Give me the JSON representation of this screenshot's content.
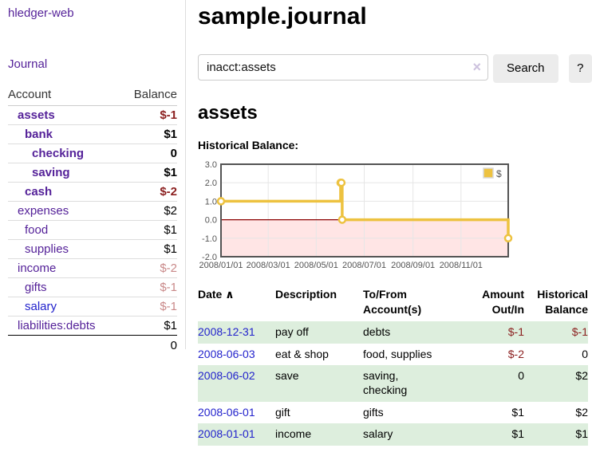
{
  "app": {
    "brand": "hledger-web",
    "nav_journal": "Journal"
  },
  "sidebar": {
    "accounts_header": {
      "account": "Account",
      "balance": "Balance"
    },
    "rows": [
      {
        "name": "assets",
        "depth": 1,
        "balance": "$-1",
        "bold": true,
        "neg": "strong"
      },
      {
        "name": "bank",
        "depth": 2,
        "balance": "$1",
        "bold": true
      },
      {
        "name": "checking",
        "depth": 3,
        "balance": "0",
        "bold": true
      },
      {
        "name": "saving",
        "depth": 3,
        "balance": "$1",
        "bold": true
      },
      {
        "name": "cash",
        "depth": 2,
        "balance": "$-2",
        "bold": true,
        "neg": "strong"
      },
      {
        "name": "expenses",
        "depth": 1,
        "balance": "$2"
      },
      {
        "name": "food",
        "depth": 2,
        "balance": "$1"
      },
      {
        "name": "supplies",
        "depth": 2,
        "balance": "$1"
      },
      {
        "name": "income",
        "depth": 1,
        "balance": "$-2",
        "neg": "faded"
      },
      {
        "name": "gifts",
        "depth": 2,
        "balance": "$-1",
        "neg": "faded"
      },
      {
        "name": "salary",
        "depth": 2,
        "balance": "$-1",
        "neg": "faded",
        "link": "blue"
      },
      {
        "name": "liabilities:debts",
        "depth": 1,
        "balance": "$1"
      }
    ],
    "total": "0"
  },
  "header": {
    "title": "sample.journal"
  },
  "search": {
    "value": "inacct:assets",
    "clear_icon": "×",
    "button_label": "Search",
    "help_label": "?"
  },
  "account_page": {
    "title": "assets",
    "chart_label": "Historical Balance:"
  },
  "chart_data": {
    "type": "line",
    "step": true,
    "title": "Historical Balance:",
    "legend": {
      "label": "$",
      "position": "top-right"
    },
    "ylim": [
      -2,
      3
    ],
    "y_ticks": [
      3,
      2,
      1,
      0,
      -1,
      -2
    ],
    "xlim_days": [
      0,
      365
    ],
    "x_ticks": [
      {
        "day": 0,
        "label": "2008/01/01"
      },
      {
        "day": 60,
        "label": "2008/03/01"
      },
      {
        "day": 121,
        "label": "2008/05/01"
      },
      {
        "day": 182,
        "label": "2008/07/01"
      },
      {
        "day": 244,
        "label": "2008/09/01"
      },
      {
        "day": 305,
        "label": "2008/11/01"
      }
    ],
    "series": [
      {
        "name": "$",
        "color": "#EDC240",
        "points": [
          {
            "date": "2008-01-01",
            "day": 0,
            "value": 1
          },
          {
            "date": "2008-06-01",
            "day": 152,
            "value": 2
          },
          {
            "date": "2008-06-02",
            "day": 153,
            "value": 2
          },
          {
            "date": "2008-06-03",
            "day": 154,
            "value": 0
          },
          {
            "date": "2008-12-31",
            "day": 365,
            "value": -1
          }
        ]
      }
    ],
    "colors": {
      "grid": "#e6e6e6",
      "border": "#545454",
      "tick_text": "#545454",
      "zero_line": "#8b0000",
      "negative_region": "rgba(255,0,0,0.10)",
      "marker_fill": "#ffffff",
      "legend_bg": "#ffffff",
      "legend_box_border": "#d9d9d9"
    }
  },
  "register": {
    "columns": [
      "Date",
      "Description",
      "To/From\nAccount(s)",
      "Amount\nOut/In",
      "Historical\nBalance"
    ],
    "sort_icon": "∧",
    "rows": [
      {
        "date": "2008-12-31",
        "description": "pay off",
        "accounts": "debts",
        "amount": "$-1",
        "balance": "$-1",
        "amount_neg": true,
        "balance_neg": true,
        "shade": true
      },
      {
        "date": "2008-06-03",
        "description": "eat & shop",
        "accounts": "food, supplies",
        "amount": "$-2",
        "balance": "0",
        "amount_neg": true,
        "balance_neg": false,
        "shade": false
      },
      {
        "date": "2008-06-02",
        "description": "save",
        "accounts": "saving,\nchecking",
        "amount": "0",
        "balance": "$2",
        "amount_neg": false,
        "balance_neg": false,
        "shade": true
      },
      {
        "date": "2008-06-01",
        "description": "gift",
        "accounts": "gifts",
        "amount": "$1",
        "balance": "$2",
        "amount_neg": false,
        "balance_neg": false,
        "shade": false
      },
      {
        "date": "2008-01-01",
        "description": "income",
        "accounts": "salary",
        "amount": "$1",
        "balance": "$1",
        "amount_neg": false,
        "balance_neg": false,
        "shade": true
      }
    ]
  }
}
